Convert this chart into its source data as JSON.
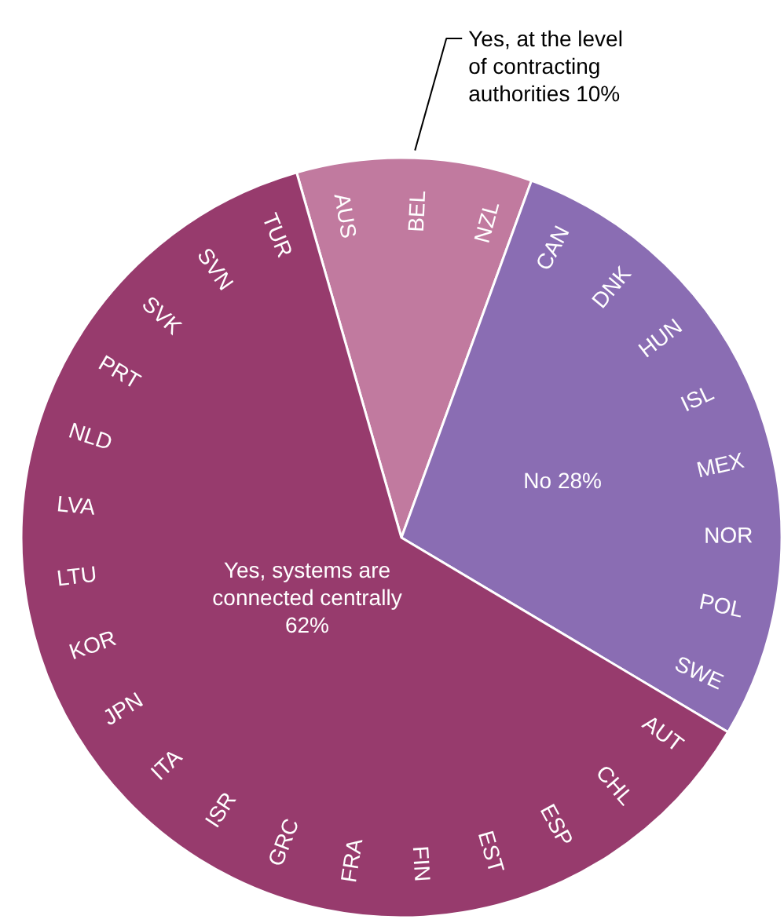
{
  "chart_data": {
    "type": "pie",
    "categories": [
      "Yes, at the level of contracting authorities",
      "No",
      "Yes, systems are connected centrally"
    ],
    "values": [
      10,
      28,
      62
    ],
    "value_labels": [
      "10%",
      "28%",
      "62%"
    ],
    "colors": [
      "#c17a9f",
      "#8a6db3",
      "#973b6d"
    ],
    "annotations": [
      "AUS",
      "BEL",
      "NZL",
      "CAN",
      "DNK",
      "HUN",
      "ISL",
      "MEX",
      "NOR",
      "POL",
      "SWE",
      "AUT",
      "CHL",
      "ESP",
      "EST",
      "FIN",
      "FRA",
      "GRC",
      "ISR",
      "ITA",
      "JPN",
      "KOR",
      "LTU",
      "LVA",
      "NLD",
      "PRT",
      "SVK",
      "SVN",
      "TUR"
    ]
  }
}
